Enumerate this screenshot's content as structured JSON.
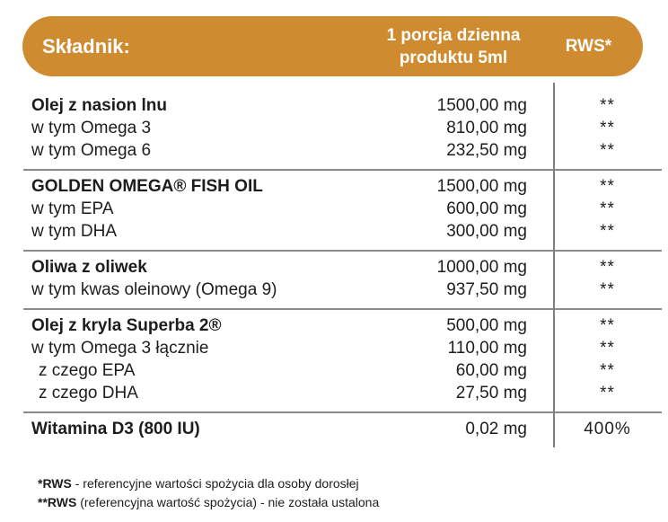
{
  "colors": {
    "gold": "#CF8B30",
    "gold_light": "#DEA14E",
    "line_gray": "#8a8a8a",
    "text": "#1d1d1b"
  },
  "header": {
    "col_ingredient": "Składnik:",
    "col_amount_line1": "1 porcja dzienna",
    "col_amount_line2": "produktu 5ml",
    "col_rws": "RWS*"
  },
  "groups": [
    {
      "rows": [
        {
          "name": "Olej z nasion lnu",
          "bold": true,
          "indent": false,
          "amount": "1500,00 mg",
          "rws": "**"
        },
        {
          "name": "w tym Omega 3",
          "bold": false,
          "indent": false,
          "amount": "810,00 mg",
          "rws": "**"
        },
        {
          "name": "w tym Omega 6",
          "bold": false,
          "indent": false,
          "amount": "232,50 mg",
          "rws": "**"
        }
      ]
    },
    {
      "rows": [
        {
          "name": "GOLDEN OMEGA® FISH OIL",
          "bold": true,
          "indent": false,
          "amount": "1500,00 mg",
          "rws": "**"
        },
        {
          "name": "w tym EPA",
          "bold": false,
          "indent": false,
          "amount": "600,00 mg",
          "rws": "**"
        },
        {
          "name": "w tym DHA",
          "bold": false,
          "indent": false,
          "amount": "300,00 mg",
          "rws": "**"
        }
      ]
    },
    {
      "rows": [
        {
          "name": "Oliwa z oliwek",
          "bold": true,
          "indent": false,
          "amount": "1000,00 mg",
          "rws": "**"
        },
        {
          "name": "w tym kwas oleinowy (Omega 9)",
          "bold": false,
          "indent": false,
          "amount": "937,50 mg",
          "rws": "**"
        }
      ]
    },
    {
      "rows": [
        {
          "name": "Olej z kryla Superba 2®",
          "bold": true,
          "indent": false,
          "amount": "500,00 mg",
          "rws": "**"
        },
        {
          "name": "w tym Omega 3 łącznie",
          "bold": false,
          "indent": false,
          "amount": "110,00 mg",
          "rws": "**"
        },
        {
          "name": "z czego EPA",
          "bold": false,
          "indent": true,
          "amount": "60,00 mg",
          "rws": "**"
        },
        {
          "name": "z czego DHA",
          "bold": false,
          "indent": true,
          "amount": "27,50 mg",
          "rws": "**"
        }
      ]
    },
    {
      "rows": [
        {
          "name": "Witamina D3 (800 IU)",
          "bold": true,
          "indent": false,
          "amount": "0,02 mg",
          "rws": "400%"
        }
      ]
    }
  ],
  "footnotes": [
    {
      "bold": "*RWS",
      "rest": " - referencyjne wartości spożycia dla osoby dorosłej"
    },
    {
      "bold": "**RWS",
      "rest": " (referencyjna wartość spożycia) - nie została ustalona"
    }
  ]
}
